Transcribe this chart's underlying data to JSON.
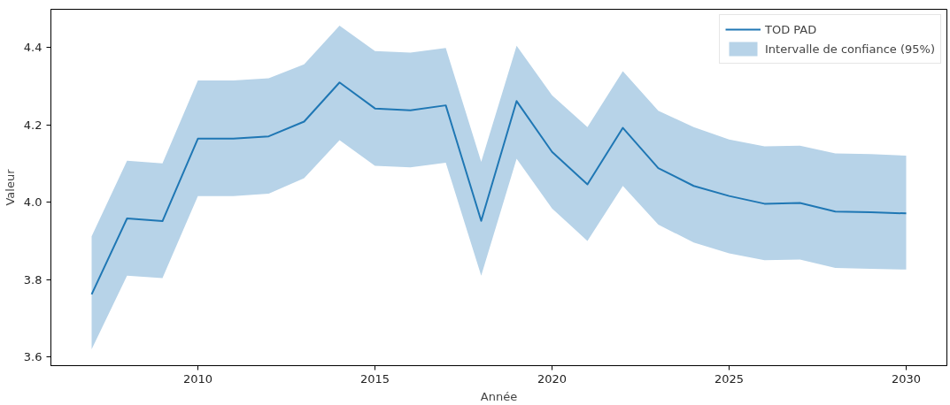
{
  "chart_data": {
    "type": "line",
    "xlabel": "Année",
    "ylabel": "Valeur",
    "x": [
      2007,
      2008,
      2009,
      2010,
      2011,
      2012,
      2013,
      2014,
      2015,
      2016,
      2017,
      2018,
      2019,
      2020,
      2021,
      2022,
      2023,
      2024,
      2025,
      2026,
      2027,
      2028,
      2029,
      2030
    ],
    "series": [
      {
        "name": "TOD PAD",
        "color": "#1f77b4",
        "values": [
          3.762,
          3.958,
          3.951,
          4.164,
          4.164,
          4.17,
          4.208,
          4.309,
          4.242,
          4.237,
          4.25,
          3.952,
          4.261,
          4.13,
          4.046,
          4.192,
          4.088,
          4.042,
          4.016,
          3.996,
          3.998,
          3.976,
          3.974,
          3.971
        ]
      },
      {
        "name": "Intervalle de confiance (95%)",
        "type": "area",
        "color": "#b7d3e8",
        "values": [
          null,
          null,
          null,
          null,
          null,
          null,
          null,
          null,
          null,
          null,
          null,
          null,
          null,
          null,
          null,
          null,
          null,
          null,
          null,
          null,
          null,
          null,
          null,
          null
        ],
        "upper": [
          3.912,
          4.107,
          4.1,
          4.314,
          4.314,
          4.32,
          4.356,
          4.456,
          4.39,
          4.386,
          4.398,
          4.104,
          4.404,
          4.276,
          4.194,
          4.338,
          4.236,
          4.194,
          4.162,
          4.144,
          4.146,
          4.126,
          4.124,
          4.12
        ],
        "lower": [
          3.62,
          3.81,
          3.804,
          4.016,
          4.016,
          4.022,
          4.062,
          4.16,
          4.094,
          4.09,
          4.102,
          3.81,
          4.112,
          3.984,
          3.9,
          4.042,
          3.942,
          3.896,
          3.868,
          3.85,
          3.852,
          3.83,
          3.828,
          3.826
        ]
      }
    ],
    "xlim": [
      2005.85,
      2031.15
    ],
    "ylim": [
      3.578,
      4.498
    ],
    "xticks": [
      2010,
      2015,
      2020,
      2025,
      2030
    ],
    "yticks": [
      3.6,
      3.8,
      {
        "value": 4.0,
        "label": "4.0"
      },
      4.2,
      4.4
    ],
    "grid": false,
    "legend": "top right",
    "line_style": "solid"
  }
}
